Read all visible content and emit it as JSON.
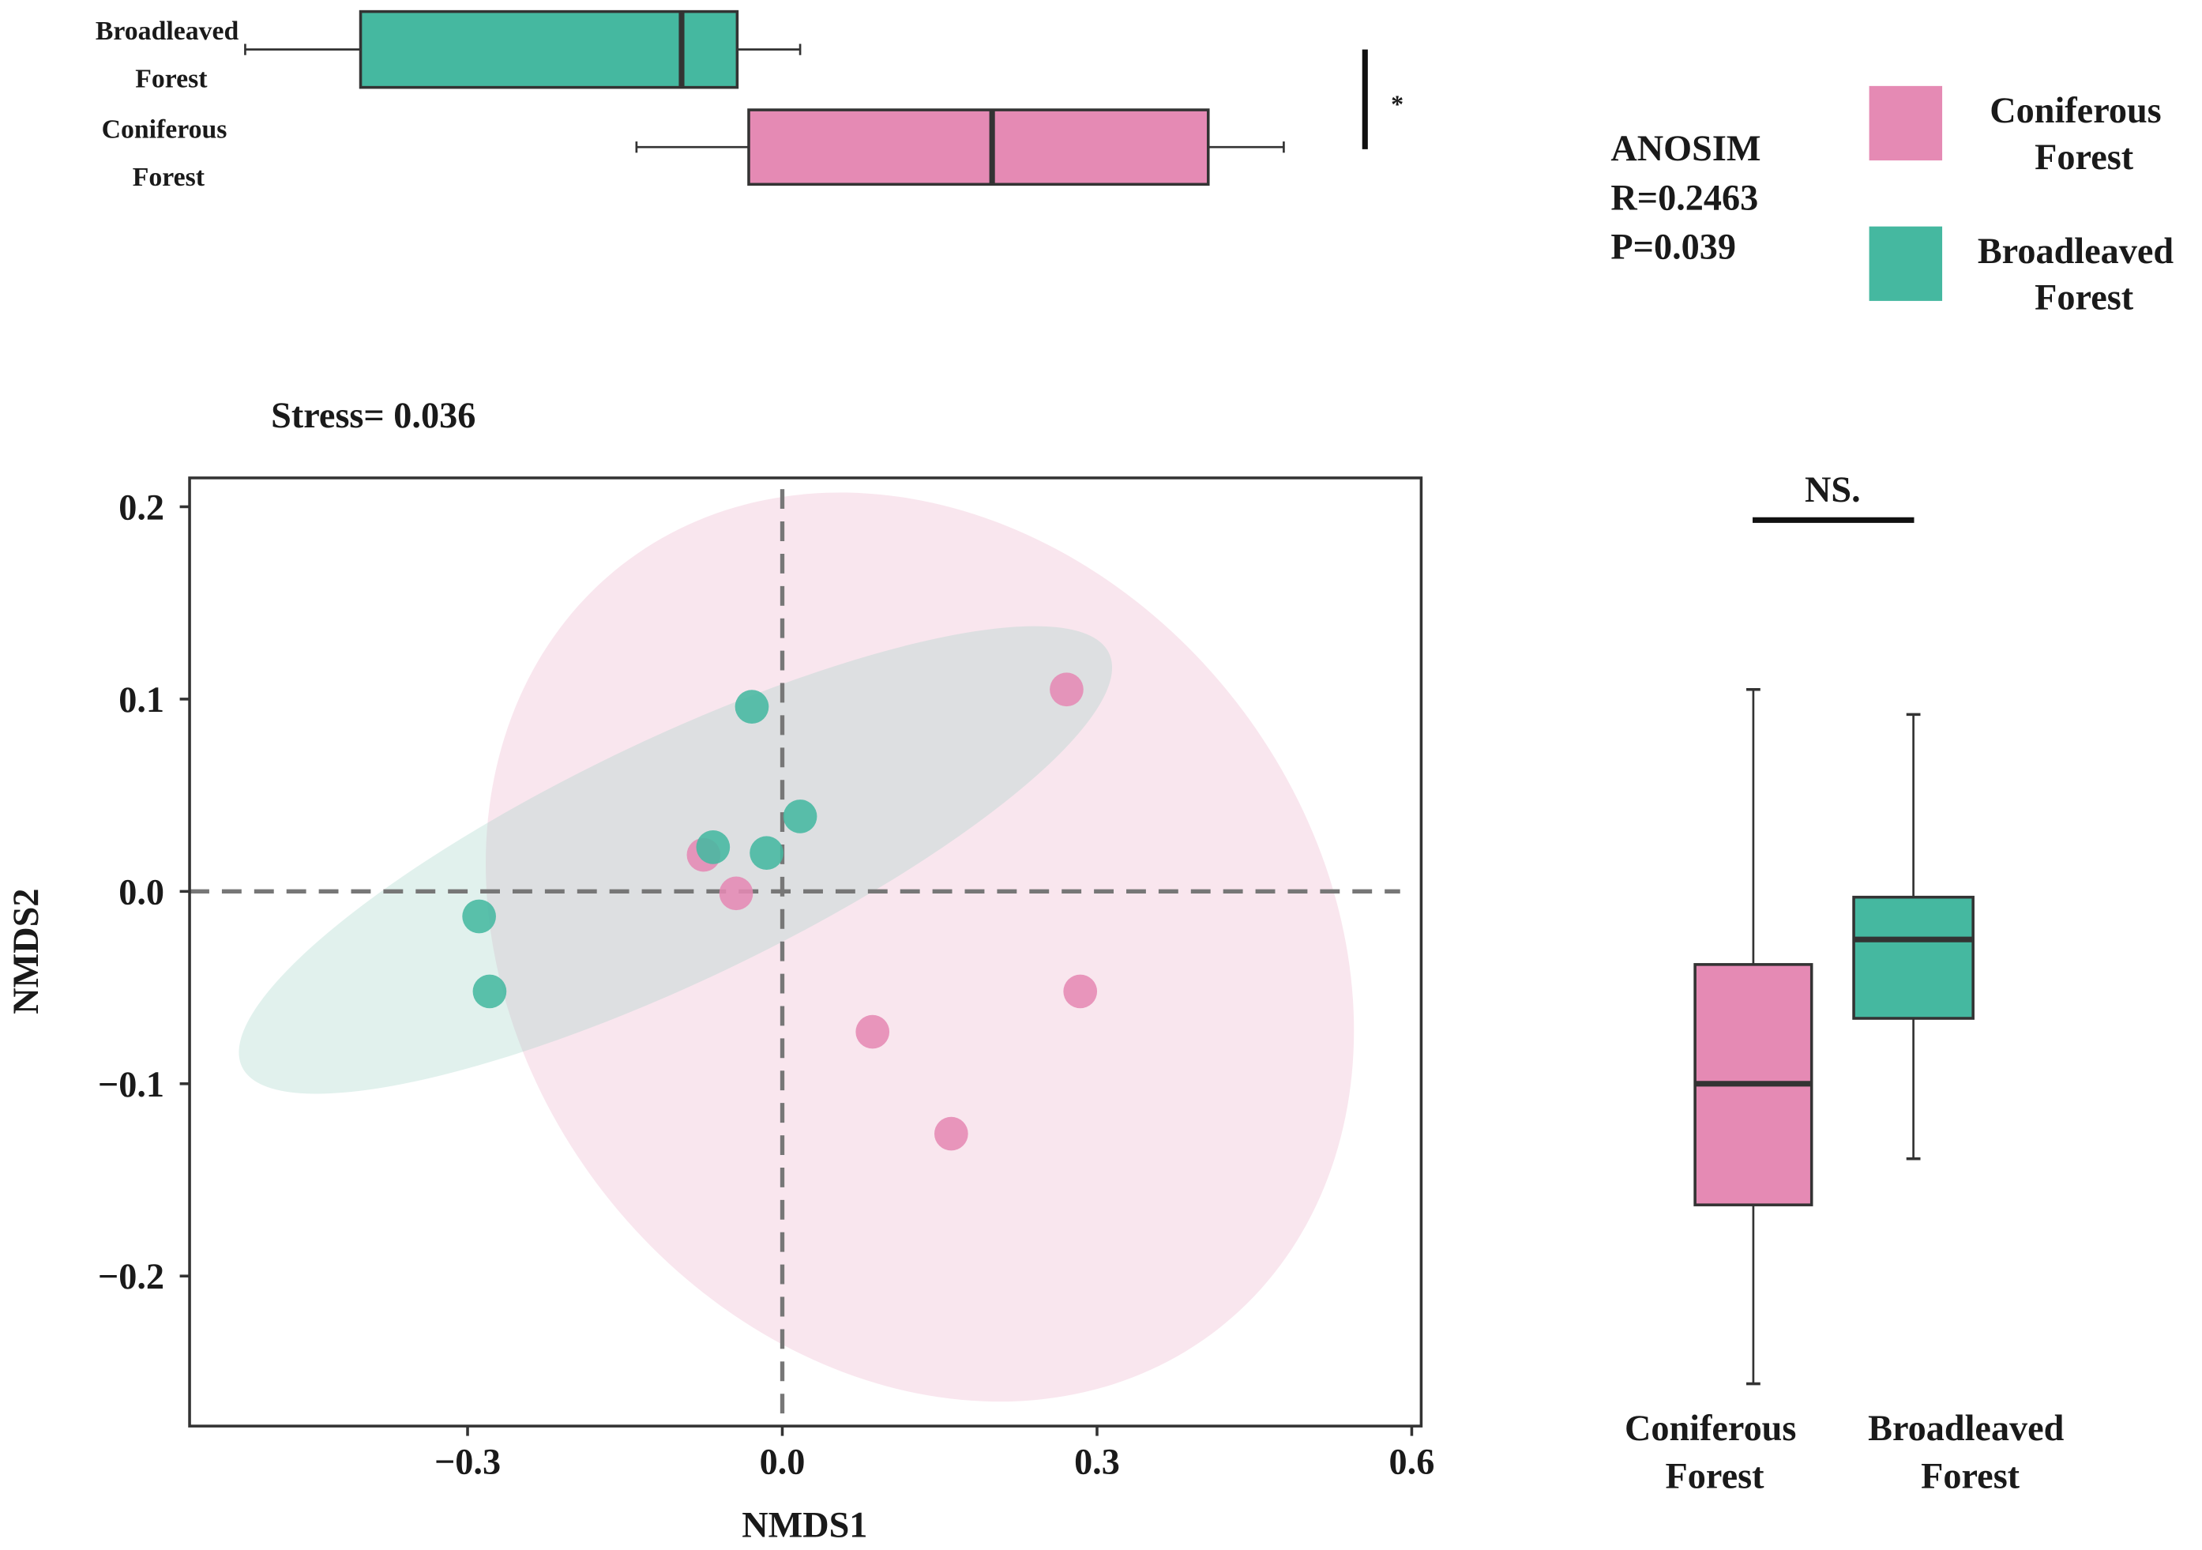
{
  "colors": {
    "coniferous": "#E58AB4",
    "broadleaved": "#45B8A0",
    "coniferous_ellipse": "#F9E6EE",
    "broadleaved_ellipse": "#9AD0C4",
    "axis": "#333333",
    "dashed": "#777777"
  },
  "chart_data": [
    {
      "type": "scatter",
      "subtitle": "Stress= 0.036",
      "xlabel": "NMDS1",
      "ylabel": "NMDS2",
      "xlim": [
        -0.565,
        0.609
      ],
      "ylim": [
        -0.278,
        0.215
      ],
      "xticks": [
        -0.3,
        0.0,
        0.3,
        0.6
      ],
      "xtick_labels": [
        "−0.3",
        "0.0",
        "0.3",
        "0.6"
      ],
      "yticks": [
        0.2,
        0.1,
        0.0,
        -0.1,
        -0.2
      ],
      "ytick_labels": [
        "0.2",
        "0.1",
        "0.0",
        "−0.1",
        "−0.2"
      ],
      "reference_lines": {
        "x": 0,
        "y": 0,
        "style": "dashed"
      },
      "grid": false,
      "confidence_ellipses": true,
      "series": [
        {
          "name": "Coniferous Forest",
          "color": "#E58AB4",
          "points": [
            [
              0.271,
              0.105
            ],
            [
              -0.075,
              0.019
            ],
            [
              -0.044,
              -0.001
            ],
            [
              0.284,
              -0.052
            ],
            [
              0.086,
              -0.073
            ],
            [
              0.161,
              -0.126
            ]
          ]
        },
        {
          "name": "Broadleaved Forest",
          "color": "#45B8A0",
          "points": [
            [
              -0.029,
              0.096
            ],
            [
              0.017,
              0.039
            ],
            [
              -0.066,
              0.023
            ],
            [
              -0.015,
              0.02
            ],
            [
              -0.289,
              -0.013
            ],
            [
              -0.279,
              -0.052
            ]
          ]
        }
      ]
    },
    {
      "type": "boxplot",
      "orientation": "horizontal",
      "axis": "NMDS1",
      "categories": [
        "Broadleaved Forest",
        "Coniferous Forest"
      ],
      "category_labels": [
        [
          "Broadleaved",
          "Forest"
        ],
        [
          "Coniferous",
          "Forest"
        ]
      ],
      "boxes": [
        {
          "group": "Broadleaved Forest",
          "min": -0.512,
          "q1": -0.402,
          "median": -0.096,
          "q3": -0.043,
          "max": 0.017,
          "color": "#45B8A0"
        },
        {
          "group": "Coniferous Forest",
          "min": -0.139,
          "q1": -0.032,
          "median": 0.2,
          "q3": 0.406,
          "max": 0.478,
          "color": "#E58AB4"
        }
      ],
      "significance": "*"
    },
    {
      "type": "boxplot",
      "orientation": "vertical",
      "axis": "NMDS2",
      "categories": [
        "Coniferous Forest",
        "Broadleaved Forest"
      ],
      "category_labels": [
        [
          "Coniferous",
          "Forest"
        ],
        [
          "Broadleaved",
          "Forest"
        ]
      ],
      "boxes": [
        {
          "group": "Coniferous Forest",
          "min": -0.256,
          "q1": -0.163,
          "median": -0.1,
          "q3": -0.038,
          "max": 0.105,
          "color": "#E58AB4"
        },
        {
          "group": "Broadleaved Forest",
          "min": -0.139,
          "q1": -0.066,
          "median": -0.025,
          "q3": -0.003,
          "max": 0.092,
          "color": "#45B8A0"
        }
      ],
      "significance": "NS."
    }
  ],
  "anosim": {
    "title": "ANOSIM",
    "r": "R=0.2463",
    "p": "P=0.039"
  },
  "legend": {
    "placement": "top-right",
    "items": [
      {
        "line1": "Coniferous",
        "line2": "Forest",
        "color": "#E58AB4"
      },
      {
        "line1": "Broadleaved",
        "line2": "Forest",
        "color": "#45B8A0"
      }
    ]
  }
}
